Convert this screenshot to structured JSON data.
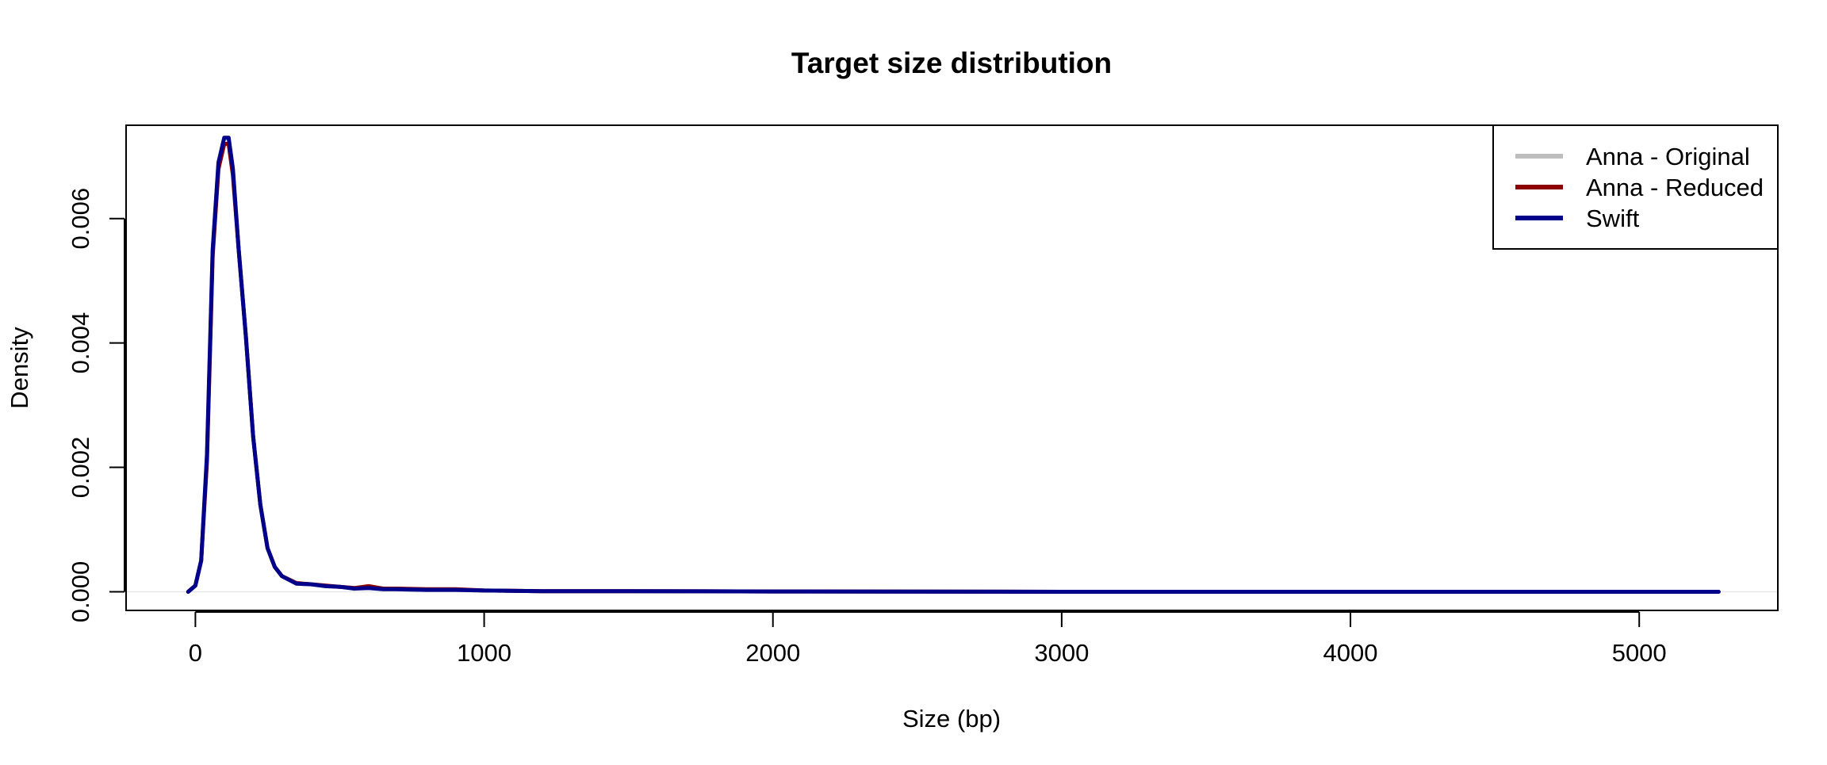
{
  "chart_data": {
    "type": "line",
    "title": "Target size distribution",
    "xlabel": "Size (bp)",
    "ylabel": "Density",
    "xlim": [
      -240,
      5480
    ],
    "ylim": [
      -0.0003,
      0.0075
    ],
    "x_ticks": [
      0,
      1000,
      2000,
      3000,
      4000,
      5000
    ],
    "x_tick_labels": [
      "0",
      "1000",
      "2000",
      "3000",
      "4000",
      "5000"
    ],
    "y_ticks": [
      0.0,
      0.002,
      0.004,
      0.006
    ],
    "y_tick_labels": [
      "0.000",
      "0.002",
      "0.004",
      "0.006"
    ],
    "grid": false,
    "baseline": 0,
    "legend_position": "top-right",
    "series": [
      {
        "name": "Anna - Original",
        "color": "#bebebe",
        "x": [
          -25,
          0,
          20,
          40,
          60,
          80,
          100,
          115,
          130,
          150,
          175,
          200,
          225,
          250,
          275,
          300,
          350,
          400,
          450,
          500,
          550,
          600,
          650,
          700,
          800,
          900,
          1000,
          1200,
          1500,
          2000,
          3000,
          4000,
          5000,
          5275
        ],
        "y": [
          0.0,
          0.0001,
          0.0005,
          0.0022,
          0.0055,
          0.0069,
          0.0073,
          0.0073,
          0.0068,
          0.0055,
          0.0041,
          0.0025,
          0.0014,
          0.0007,
          0.0004,
          0.00025,
          0.00013,
          0.00012,
          9e-05,
          8e-05,
          6e-05,
          7e-05,
          5e-05,
          4e-05,
          3e-05,
          3e-05,
          2e-05,
          1e-05,
          1e-05,
          5e-06,
          0.0,
          0.0,
          0.0,
          0.0
        ]
      },
      {
        "name": "Anna - Reduced",
        "color": "#8b0000",
        "x": [
          -25,
          0,
          20,
          40,
          60,
          80,
          100,
          115,
          130,
          150,
          175,
          200,
          225,
          250,
          275,
          300,
          350,
          400,
          450,
          500,
          550,
          600,
          650,
          700,
          800,
          900,
          1000,
          1200,
          1500,
          2000,
          3000,
          4000,
          5000,
          5275
        ],
        "y": [
          0.0,
          0.0001,
          0.0005,
          0.0021,
          0.0054,
          0.0068,
          0.0072,
          0.0072,
          0.0067,
          0.0055,
          0.0041,
          0.0025,
          0.0014,
          0.0007,
          0.0004,
          0.00025,
          0.00014,
          0.00012,
          0.0001,
          8e-05,
          6e-05,
          9e-05,
          5e-05,
          5e-05,
          4e-05,
          4e-05,
          2e-05,
          1e-05,
          1e-05,
          5e-06,
          0.0,
          0.0,
          0.0,
          0.0
        ]
      },
      {
        "name": "Swift",
        "color": "#00008b",
        "x": [
          -25,
          0,
          20,
          40,
          60,
          80,
          100,
          115,
          130,
          150,
          175,
          200,
          225,
          250,
          275,
          300,
          350,
          400,
          450,
          500,
          550,
          600,
          650,
          700,
          800,
          900,
          1000,
          1200,
          1500,
          2000,
          3000,
          4000,
          5000,
          5275
        ],
        "y": [
          0.0,
          0.0001,
          0.0005,
          0.0022,
          0.0055,
          0.0069,
          0.0073,
          0.0073,
          0.0068,
          0.0055,
          0.0041,
          0.0025,
          0.0014,
          0.0007,
          0.0004,
          0.00025,
          0.00013,
          0.00012,
          9e-05,
          8e-05,
          5e-05,
          6e-05,
          4e-05,
          4e-05,
          3e-05,
          3e-05,
          2e-05,
          1e-05,
          1e-05,
          5e-06,
          0.0,
          0.0,
          0.0,
          0.0
        ]
      }
    ]
  }
}
